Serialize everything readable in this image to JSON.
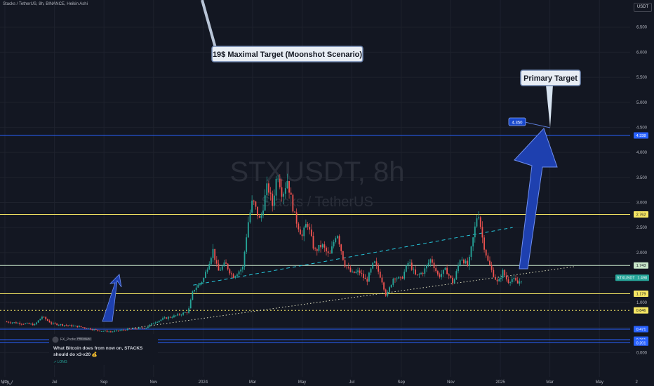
{
  "header": {
    "symbol_line": "Stacks / TetherUS, 8h, BINANCE, Heikin Ashi",
    "currency": "USDT"
  },
  "watermark": {
    "ticker": "STXUSDT, 8h",
    "name": "Stacks / TetherUS"
  },
  "idea_card": {
    "author": "FX_Professor",
    "badge": "PREMIUM",
    "title": "What Bitcoin does from now on, STACKS should do x3-x20 💰",
    "tag": "↗ LONG"
  },
  "colors": {
    "background": "#131722",
    "up": "#26a69a",
    "down": "#ef5350",
    "blue_line": "#2962ff",
    "yellow_line": "#f5e663",
    "arrow_fill": "#1e40af",
    "grid": "#1e222d"
  },
  "chart_data": {
    "type": "candlestick",
    "style": "Heikin Ashi",
    "y_axis": {
      "min": 0,
      "max": 7,
      "ticks": [
        0.0,
        0.5,
        1.0,
        1.5,
        2.0,
        2.5,
        3.0,
        3.5,
        4.0,
        4.5,
        5.0,
        5.5,
        6.0,
        6.5
      ],
      "tick_labels": [
        "0.000",
        "0.500",
        "1.000",
        "1.500",
        "2.000",
        "2.500",
        "3.000",
        "3.500",
        "4.000",
        "4.500",
        "5.000",
        "5.500",
        "6.000",
        "6.500"
      ]
    },
    "x_axis": {
      "tick_labels": [
        "May",
        "Jul",
        "Sep",
        "Nov",
        "2024",
        "Mar",
        "May",
        "Jul",
        "Sep",
        "Nov",
        "2025",
        "Mar",
        "May",
        "2"
      ],
      "tick_months": [
        0,
        2,
        4,
        6,
        8,
        10,
        12,
        14,
        16,
        18,
        20,
        22,
        24,
        25.5
      ]
    },
    "price_series": [
      {
        "t": 0.0,
        "p": 0.62
      },
      {
        "t": 1.2,
        "p": 0.56
      },
      {
        "t": 1.5,
        "p": 0.72
      },
      {
        "t": 1.9,
        "p": 0.58
      },
      {
        "t": 3.0,
        "p": 0.52
      },
      {
        "t": 3.8,
        "p": 0.44
      },
      {
        "t": 4.3,
        "p": 0.42
      },
      {
        "t": 5.0,
        "p": 0.47
      },
      {
        "t": 5.7,
        "p": 0.5
      },
      {
        "t": 6.0,
        "p": 0.6
      },
      {
        "t": 6.4,
        "p": 0.68
      },
      {
        "t": 6.9,
        "p": 0.74
      },
      {
        "t": 7.4,
        "p": 0.82
      },
      {
        "t": 7.6,
        "p": 1.25
      },
      {
        "t": 8.0,
        "p": 1.45
      },
      {
        "t": 8.4,
        "p": 2.05
      },
      {
        "t": 8.6,
        "p": 1.62
      },
      {
        "t": 8.9,
        "p": 1.78
      },
      {
        "t": 9.2,
        "p": 1.52
      },
      {
        "t": 9.6,
        "p": 1.7
      },
      {
        "t": 9.8,
        "p": 2.55
      },
      {
        "t": 10.0,
        "p": 3.05
      },
      {
        "t": 10.3,
        "p": 2.62
      },
      {
        "t": 10.6,
        "p": 3.35
      },
      {
        "t": 10.8,
        "p": 2.95
      },
      {
        "t": 11.0,
        "p": 3.62
      },
      {
        "t": 11.2,
        "p": 3.15
      },
      {
        "t": 11.4,
        "p": 3.45
      },
      {
        "t": 11.7,
        "p": 2.72
      },
      {
        "t": 12.0,
        "p": 2.32
      },
      {
        "t": 12.2,
        "p": 2.62
      },
      {
        "t": 12.5,
        "p": 2.02
      },
      {
        "t": 12.8,
        "p": 2.15
      },
      {
        "t": 13.1,
        "p": 1.92
      },
      {
        "t": 13.4,
        "p": 2.42
      },
      {
        "t": 13.7,
        "p": 1.78
      },
      {
        "t": 14.0,
        "p": 1.58
      },
      {
        "t": 14.3,
        "p": 1.62
      },
      {
        "t": 14.6,
        "p": 1.42
      },
      {
        "t": 14.9,
        "p": 1.82
      },
      {
        "t": 15.2,
        "p": 1.48
      },
      {
        "t": 15.4,
        "p": 1.12
      },
      {
        "t": 15.7,
        "p": 1.52
      },
      {
        "t": 16.0,
        "p": 1.46
      },
      {
        "t": 16.3,
        "p": 1.82
      },
      {
        "t": 16.6,
        "p": 1.52
      },
      {
        "t": 16.9,
        "p": 1.62
      },
      {
        "t": 17.2,
        "p": 1.88
      },
      {
        "t": 17.5,
        "p": 1.52
      },
      {
        "t": 17.8,
        "p": 1.66
      },
      {
        "t": 18.1,
        "p": 1.38
      },
      {
        "t": 18.4,
        "p": 1.92
      },
      {
        "t": 18.7,
        "p": 1.72
      },
      {
        "t": 18.9,
        "p": 2.28
      },
      {
        "t": 19.1,
        "p": 2.85
      },
      {
        "t": 19.3,
        "p": 2.22
      },
      {
        "t": 19.5,
        "p": 1.82
      },
      {
        "t": 19.7,
        "p": 1.58
      },
      {
        "t": 19.9,
        "p": 1.38
      },
      {
        "t": 20.1,
        "p": 1.62
      },
      {
        "t": 20.3,
        "p": 1.42
      },
      {
        "t": 20.5,
        "p": 1.48
      },
      {
        "t": 20.7,
        "p": 1.38
      },
      {
        "t": 20.9,
        "p": 1.498
      }
    ],
    "horizontal_levels": [
      {
        "value": 4.338,
        "label": "4.338",
        "color": "#2962ff",
        "style": "solid"
      },
      {
        "value": 2.762,
        "label": "2.762",
        "color": "#f5e663",
        "style": "solid"
      },
      {
        "value": 1.743,
        "label": "1.743",
        "color": "#c8e6c9",
        "style": "solid"
      },
      {
        "value": 1.179,
        "label": "1.179",
        "color": "#f5e663",
        "style": "solid"
      },
      {
        "value": 0.846,
        "label": "0.846",
        "color": "#f5e663",
        "style": "dotted"
      },
      {
        "value": 0.471,
        "label": "0.471",
        "color": "#2962ff",
        "style": "solid"
      },
      {
        "value": 0.261,
        "label": "0.261",
        "color": "#2962ff",
        "style": "solid"
      },
      {
        "value": 0.201,
        "label": "0.201",
        "color": "#2962ff",
        "style": "solid"
      }
    ],
    "current_price": {
      "value": 1.498,
      "symbol": "STXUSDT",
      "label": "1.498"
    },
    "trendlines": [
      {
        "from": {
          "t": 7.6,
          "p": 1.35
        },
        "to": {
          "t": 20.5,
          "p": 2.5
        },
        "color": "#26c6da",
        "style": "dashed"
      },
      {
        "from": {
          "t": 5.0,
          "p": 0.48
        },
        "to": {
          "t": 23.0,
          "p": 1.72
        },
        "color": "#e0e0c0",
        "style": "dotted"
      }
    ],
    "annotations": [
      {
        "id": "moonshot",
        "text": "19$ Maximal Target (Moonshot Scenario)"
      },
      {
        "id": "primary",
        "text": "Primary Target"
      },
      {
        "id": "target-price",
        "text": "4.350"
      }
    ]
  }
}
